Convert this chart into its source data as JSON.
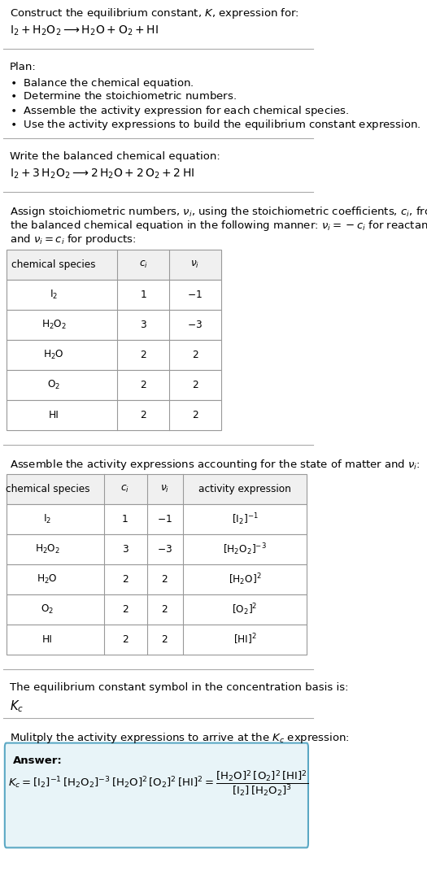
{
  "title_line1": "Construct the equilibrium constant, $K$, expression for:",
  "reaction_unbalanced": "$\\mathrm{I_2 + H_2O_2 \\longrightarrow H_2O + O_2 + HI}$",
  "plan_header": "Plan:",
  "plan_items": [
    "$\\bullet$  Balance the chemical equation.",
    "$\\bullet$  Determine the stoichiometric numbers.",
    "$\\bullet$  Assemble the activity expression for each chemical species.",
    "$\\bullet$  Use the activity expressions to build the equilibrium constant expression."
  ],
  "balanced_header": "Write the balanced chemical equation:",
  "reaction_balanced": "$\\mathrm{I_2 + 3\\,H_2O_2 \\longrightarrow 2\\,H_2O + 2\\,O_2 + 2\\,HI}$",
  "stoich_header_lines": [
    "Assign stoichiometric numbers, $\\nu_i$, using the stoichiometric coefficients, $c_i$, from",
    "the balanced chemical equation in the following manner: $\\nu_i = -c_i$ for reactants",
    "and $\\nu_i = c_i$ for products:"
  ],
  "table1_headers": [
    "chemical species",
    "$c_i$",
    "$\\nu_i$"
  ],
  "table1_rows": [
    [
      "$\\mathrm{I_2}$",
      "1",
      "$-1$"
    ],
    [
      "$\\mathrm{H_2O_2}$",
      "3",
      "$-3$"
    ],
    [
      "$\\mathrm{H_2O}$",
      "2",
      "2"
    ],
    [
      "$\\mathrm{O_2}$",
      "2",
      "2"
    ],
    [
      "HI",
      "2",
      "2"
    ]
  ],
  "activity_header": "Assemble the activity expressions accounting for the state of matter and $\\nu_i$:",
  "table2_headers": [
    "chemical species",
    "$c_i$",
    "$\\nu_i$",
    "activity expression"
  ],
  "table2_rows": [
    [
      "$\\mathrm{I_2}$",
      "1",
      "$-1$",
      "$[\\mathrm{I_2}]^{-1}$"
    ],
    [
      "$\\mathrm{H_2O_2}$",
      "3",
      "$-3$",
      "$[\\mathrm{H_2O_2}]^{-3}$"
    ],
    [
      "$\\mathrm{H_2O}$",
      "2",
      "2",
      "$[\\mathrm{H_2O}]^{2}$"
    ],
    [
      "$\\mathrm{O_2}$",
      "2",
      "2",
      "$[\\mathrm{O_2}]^{2}$"
    ],
    [
      "HI",
      "2",
      "2",
      "$[\\mathrm{HI}]^{2}$"
    ]
  ],
  "kc_header": "The equilibrium constant symbol in the concentration basis is:",
  "kc_symbol": "$K_c$",
  "multiply_header": "Mulitply the activity expressions to arrive at the $K_c$ expression:",
  "answer_label": "Answer:",
  "answer_box_color": "#e8f4f8",
  "answer_box_border": "#5ba8c4",
  "bg_color": "#ffffff",
  "text_color": "#000000",
  "table_header_color": "#f0f0f0",
  "separator_color": "#bbbbbb",
  "font_size": 9.5,
  "table_border_color": "#999999"
}
